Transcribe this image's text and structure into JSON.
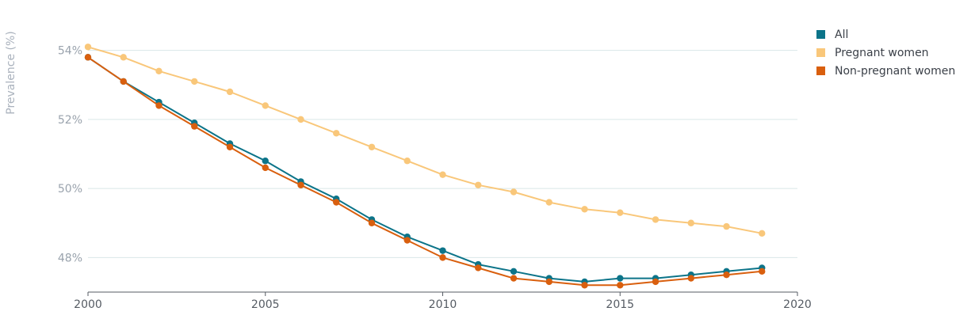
{
  "chart_data": {
    "type": "line",
    "ylabel": "Prevalence (%)",
    "xlabel": "",
    "x": [
      2000,
      2001,
      2002,
      2003,
      2004,
      2005,
      2006,
      2007,
      2008,
      2009,
      2010,
      2011,
      2012,
      2013,
      2014,
      2015,
      2016,
      2017,
      2018,
      2019
    ],
    "xlim": [
      2000,
      2020
    ],
    "ylim": [
      47.0,
      55.0
    ],
    "x_ticks": [
      2000,
      2005,
      2010,
      2015,
      2020
    ],
    "x_tick_labels": [
      "2000",
      "2005",
      "2010",
      "2015",
      "2020"
    ],
    "y_ticks": [
      48,
      50,
      52,
      54
    ],
    "y_tick_labels": [
      "48%",
      "50%",
      "52%",
      "54%"
    ],
    "grid": true,
    "legend_position": "top-right",
    "series": [
      {
        "name": "All",
        "color": "#0c7489",
        "values": [
          53.8,
          53.1,
          52.5,
          51.9,
          51.3,
          50.8,
          50.2,
          49.7,
          49.1,
          48.6,
          48.2,
          47.8,
          47.6,
          47.4,
          47.3,
          47.4,
          47.4,
          47.5,
          47.6,
          47.7
        ]
      },
      {
        "name": "Pregnant women",
        "color": "#f9c77a",
        "values": [
          54.1,
          53.8,
          53.4,
          53.1,
          52.8,
          52.4,
          52.0,
          51.6,
          51.2,
          50.8,
          50.4,
          50.1,
          49.9,
          49.6,
          49.4,
          49.3,
          49.1,
          49.0,
          48.9,
          48.7
        ]
      },
      {
        "name": "Non-pregnant women",
        "color": "#d95f0e",
        "values": [
          53.8,
          53.1,
          52.4,
          51.8,
          51.2,
          50.6,
          50.1,
          49.6,
          49.0,
          48.5,
          48.0,
          47.7,
          47.4,
          47.3,
          47.2,
          47.2,
          47.3,
          47.4,
          47.5,
          47.6
        ]
      }
    ]
  }
}
